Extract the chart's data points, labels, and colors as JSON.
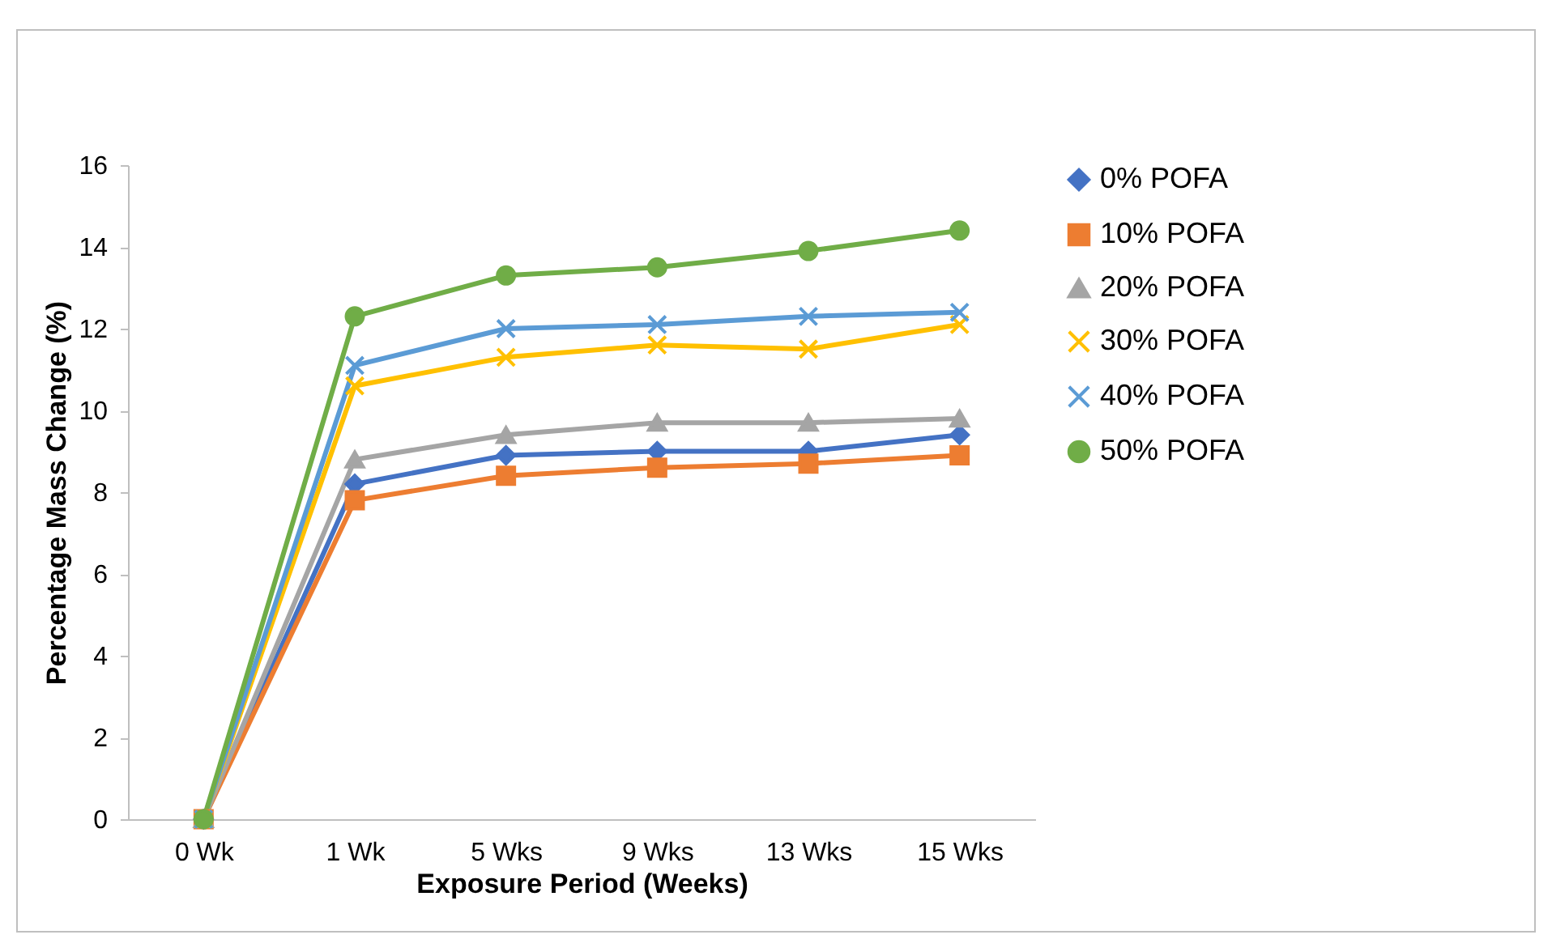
{
  "chart_data": {
    "type": "line",
    "xlabel": "Exposure Period (Weeks)",
    "ylabel": "Percentage Mass Change (%)",
    "categories": [
      "0 Wk",
      "1 Wk",
      "5 Wks",
      "9 Wks",
      "13 Wks",
      "15 Wks"
    ],
    "series": [
      {
        "name": "0% POFA",
        "color": "#4472c4",
        "marker": "diamond",
        "values": [
          0,
          8.2,
          8.9,
          9.0,
          9.0,
          9.4
        ]
      },
      {
        "name": "10% POFA",
        "color": "#ed7d31",
        "marker": "square",
        "values": [
          0,
          7.8,
          8.4,
          8.6,
          8.7,
          8.9
        ]
      },
      {
        "name": "20% POFA",
        "color": "#a5a5a5",
        "marker": "triangle",
        "values": [
          0,
          8.8,
          9.4,
          9.7,
          9.7,
          9.8
        ]
      },
      {
        "name": "30% POFA",
        "color": "#ffc000",
        "marker": "cross",
        "values": [
          0,
          10.6,
          11.3,
          11.6,
          11.5,
          12.1
        ]
      },
      {
        "name": "40% POFA",
        "color": "#5b9bd5",
        "marker": "cross",
        "values": [
          0,
          11.1,
          12.0,
          12.1,
          12.3,
          12.4
        ]
      },
      {
        "name": "50% POFA",
        "color": "#70ad47",
        "marker": "circle",
        "values": [
          0,
          12.3,
          13.3,
          13.5,
          13.9,
          14.4
        ]
      }
    ],
    "ylim": [
      0,
      16
    ],
    "yticks": [
      0,
      2,
      4,
      6,
      8,
      10,
      12,
      14,
      16
    ],
    "grid": false,
    "legend": "right",
    "line_style": "solid"
  }
}
